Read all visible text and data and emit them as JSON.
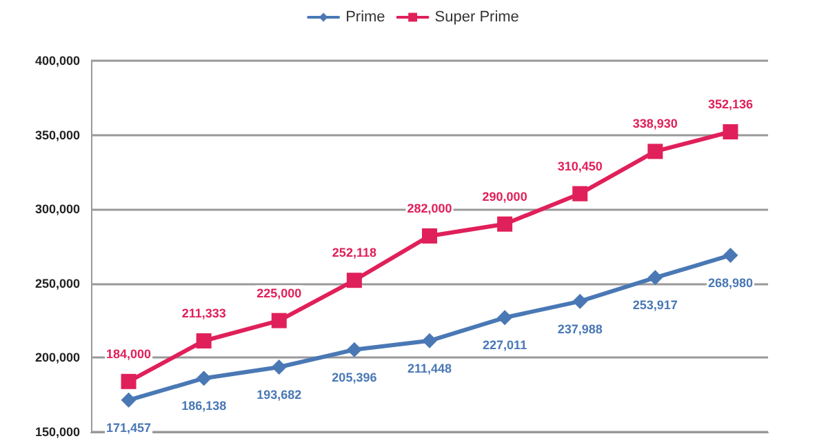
{
  "chart_data": {
    "type": "line",
    "categories": [
      null,
      null,
      null,
      null,
      null,
      null,
      null,
      null,
      null
    ],
    "series": [
      {
        "name": "Prime",
        "color": "#4a78b5",
        "marker": "diamond",
        "values": [
          171457,
          186138,
          193682,
          205396,
          211448,
          227011,
          237988,
          253917,
          268980
        ],
        "value_labels": [
          "171,457",
          "186,138",
          "193,682",
          "205,396",
          "211,448",
          "227,011",
          "237,988",
          "253,917",
          "268,980"
        ]
      },
      {
        "name": "Super Prime",
        "color": "#e0205a",
        "marker": "square",
        "values": [
          184000,
          211333,
          225000,
          252118,
          282000,
          290000,
          310450,
          338930,
          352136
        ],
        "value_labels": [
          "184,000",
          "211,333",
          "225,000",
          "252,118",
          "282,000",
          "290,000",
          "310,450",
          "338,930",
          "352,136"
        ]
      }
    ],
    "ylim": [
      150000,
      400000
    ],
    "yticks": [
      {
        "value": 150000,
        "label": "150,000"
      },
      {
        "value": 200000,
        "label": "200,000"
      },
      {
        "value": 250000,
        "label": "250,000"
      },
      {
        "value": 300000,
        "label": "300,000"
      },
      {
        "value": 350000,
        "label": "350,000"
      },
      {
        "value": 400000,
        "label": "400,000"
      }
    ],
    "grid": "y",
    "legend": "top",
    "line_style": "solid"
  }
}
